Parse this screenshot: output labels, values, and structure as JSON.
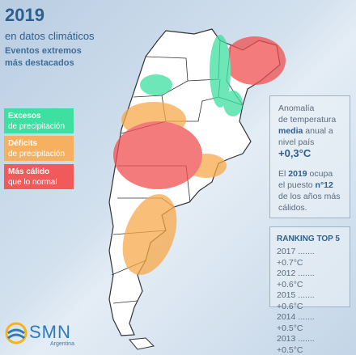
{
  "header": {
    "year": "2019",
    "subtitle": "en datos climáticos",
    "lines": [
      "Eventos extremos",
      "más destacados"
    ]
  },
  "legend": [
    {
      "title": "Excesos",
      "subtitle": "de precipitación"
    },
    {
      "title": "Déficits",
      "subtitle": "de precipitación"
    },
    {
      "title": "Más cálido",
      "subtitle": "que lo normal"
    }
  ],
  "anomaly": {
    "lines": [
      "Anomalía",
      "de temperatura"
    ],
    "media": "media",
    "anual": "anual a",
    "nivel": "nivel país",
    "value": "+0,3°C"
  },
  "rank": {
    "pre": "El",
    "year": "2019",
    "post": "ocupa",
    "puesto": "el puesto",
    "position": "n°12",
    "lines": [
      "de los años más",
      "cálidos."
    ]
  },
  "ranking": {
    "title": "RANKING TOP 5",
    "rows": [
      "2017 ....... +0.7°C",
      "2012 ....... +0.6°C",
      "2015 ....... +0.6°C",
      "2014 ....... +0.5°C",
      "2013 ....... +0.5°C"
    ]
  },
  "logo": {
    "name": "SMN",
    "country": "Argentina"
  }
}
